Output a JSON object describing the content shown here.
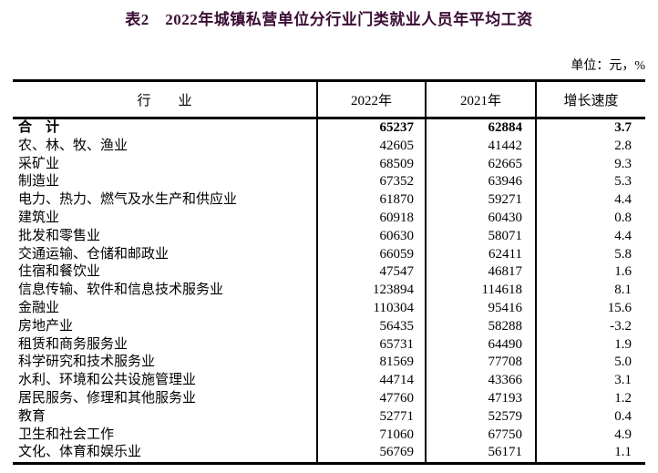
{
  "title": "表2　2022年城镇私营单位分行业门类就业人员年平均工资",
  "unit_note": "单位：元，%",
  "colors": {
    "title": "#3b0d35",
    "text": "#000000",
    "border": "#000000",
    "background": "#ffffff"
  },
  "table": {
    "columns": [
      "行　　业",
      "2022年",
      "2021年",
      "增长速度"
    ],
    "rows": [
      {
        "industry": "合　计",
        "y2022": "65237",
        "y2021": "62884",
        "growth": "3.7",
        "bold": true
      },
      {
        "industry": "农、林、牧、渔业",
        "y2022": "42605",
        "y2021": "41442",
        "growth": "2.8",
        "bold": false
      },
      {
        "industry": "采矿业",
        "y2022": "68509",
        "y2021": "62665",
        "growth": "9.3",
        "bold": false
      },
      {
        "industry": "制造业",
        "y2022": "67352",
        "y2021": "63946",
        "growth": "5.3",
        "bold": false
      },
      {
        "industry": "电力、热力、燃气及水生产和供应业",
        "y2022": "61870",
        "y2021": "59271",
        "growth": "4.4",
        "bold": false
      },
      {
        "industry": "建筑业",
        "y2022": "60918",
        "y2021": "60430",
        "growth": "0.8",
        "bold": false
      },
      {
        "industry": "批发和零售业",
        "y2022": "60630",
        "y2021": "58071",
        "growth": "4.4",
        "bold": false
      },
      {
        "industry": "交通运输、仓储和邮政业",
        "y2022": "66059",
        "y2021": "62411",
        "growth": "5.8",
        "bold": false
      },
      {
        "industry": "住宿和餐饮业",
        "y2022": "47547",
        "y2021": "46817",
        "growth": "1.6",
        "bold": false
      },
      {
        "industry": "信息传输、软件和信息技术服务业",
        "y2022": "123894",
        "y2021": "114618",
        "growth": "8.1",
        "bold": false
      },
      {
        "industry": "金融业",
        "y2022": "110304",
        "y2021": "95416",
        "growth": "15.6",
        "bold": false
      },
      {
        "industry": "房地产业",
        "y2022": "56435",
        "y2021": "58288",
        "growth": "-3.2",
        "bold": false
      },
      {
        "industry": "租赁和商务服务业",
        "y2022": "65731",
        "y2021": "64490",
        "growth": "1.9",
        "bold": false
      },
      {
        "industry": "科学研究和技术服务业",
        "y2022": "81569",
        "y2021": "77708",
        "growth": "5.0",
        "bold": false
      },
      {
        "industry": "水利、环境和公共设施管理业",
        "y2022": "44714",
        "y2021": "43366",
        "growth": "3.1",
        "bold": false
      },
      {
        "industry": "居民服务、修理和其他服务业",
        "y2022": "47760",
        "y2021": "47193",
        "growth": "1.2",
        "bold": false
      },
      {
        "industry": "教育",
        "y2022": "52771",
        "y2021": "52579",
        "growth": "0.4",
        "bold": false
      },
      {
        "industry": "卫生和社会工作",
        "y2022": "71060",
        "y2021": "67750",
        "growth": "4.9",
        "bold": false
      },
      {
        "industry": "文化、体育和娱乐业",
        "y2022": "56769",
        "y2021": "56171",
        "growth": "1.1",
        "bold": false
      }
    ]
  }
}
